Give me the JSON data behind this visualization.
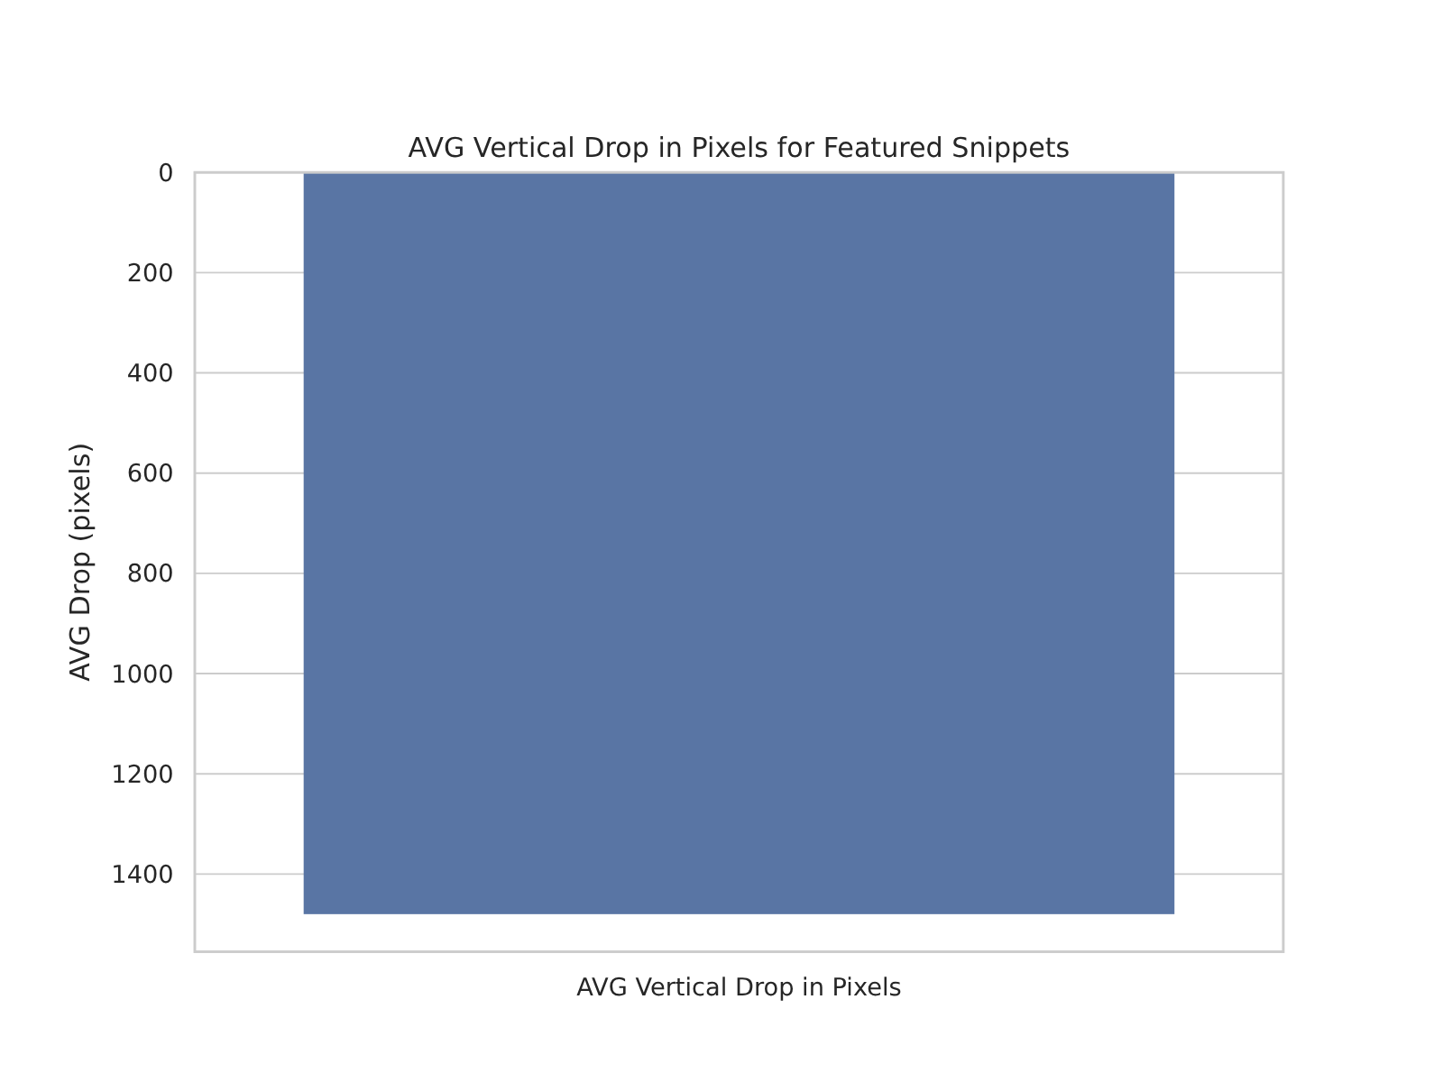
{
  "chart_data": {
    "type": "bar",
    "title": "AVG Vertical Drop in Pixels for Featured Snippets",
    "ylabel": "AVG Drop (pixels)",
    "categories": [
      "AVG Vertical Drop in Pixels"
    ],
    "values": [
      1480
    ],
    "color": "#5975a4",
    "ylim": [
      1555,
      0
    ],
    "yticks": [
      0,
      200,
      400,
      600,
      800,
      1000,
      1200,
      1400
    ],
    "grid": "y"
  }
}
